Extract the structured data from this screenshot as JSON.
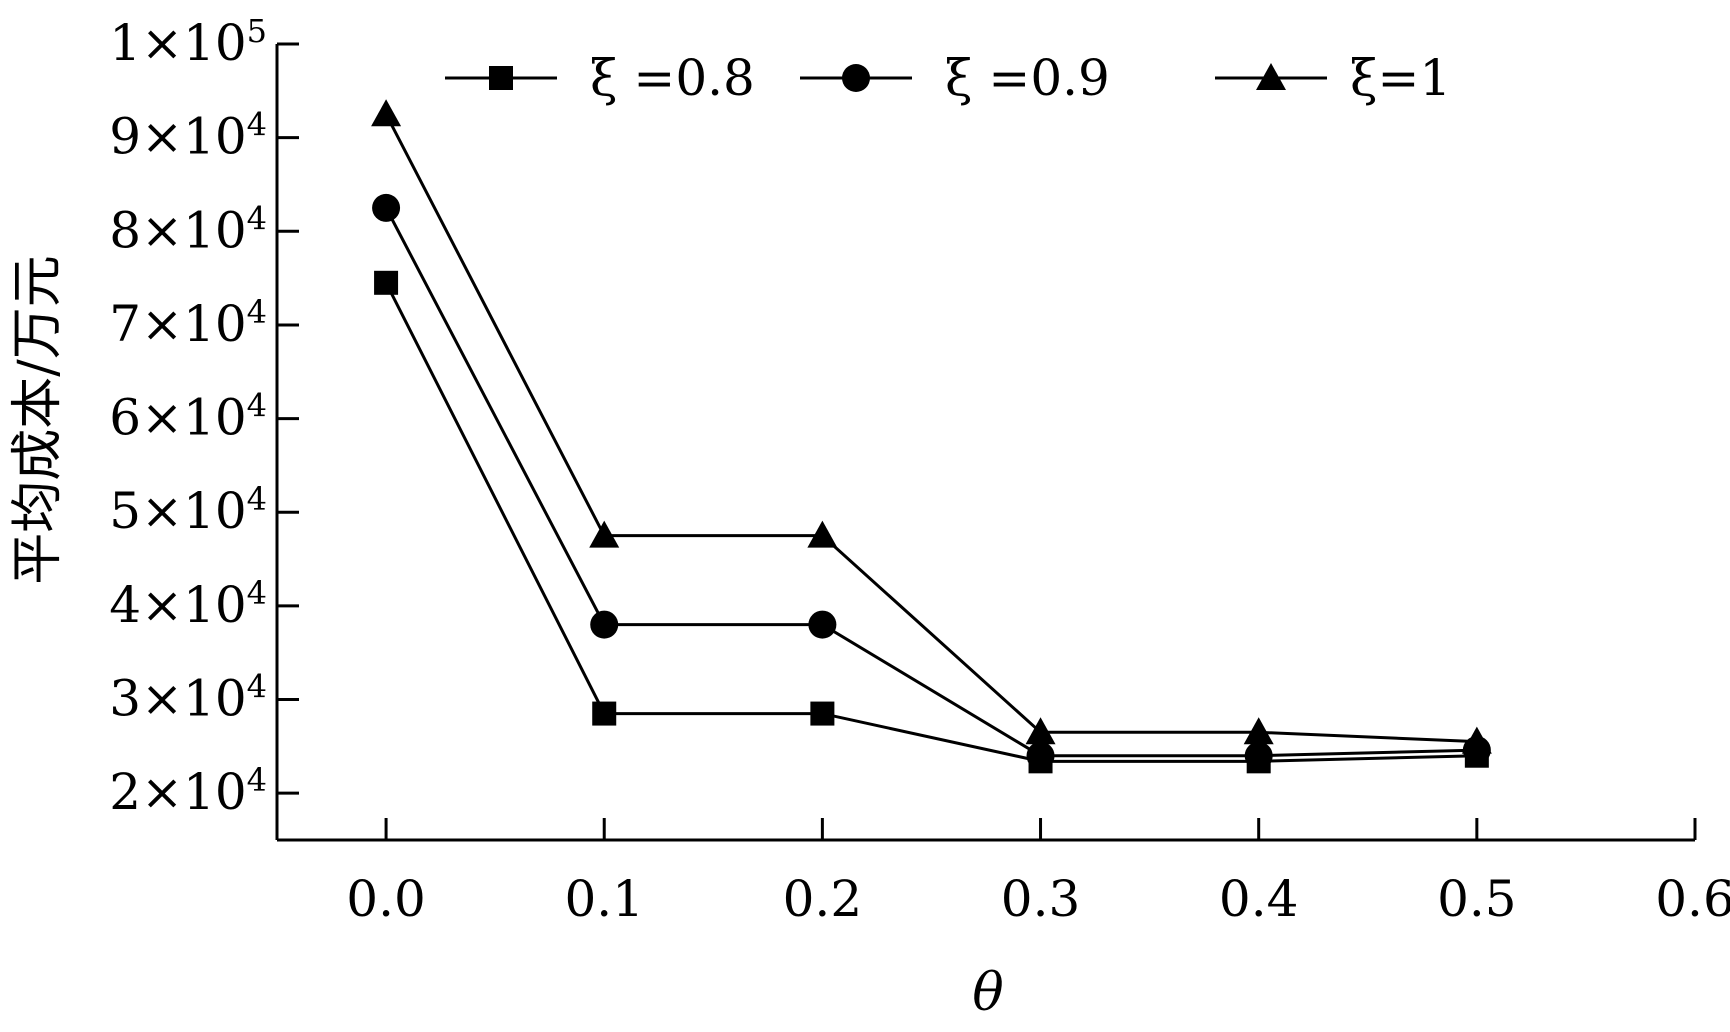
{
  "chart_data": {
    "type": "line",
    "x": [
      0.0,
      0.1,
      0.2,
      0.3,
      0.4,
      0.5
    ],
    "series": [
      {
        "name": "ξ =0.8",
        "marker": "square",
        "values": [
          74500,
          28500,
          28500,
          23400,
          23400,
          24000
        ]
      },
      {
        "name": "ξ =0.9",
        "marker": "circle",
        "values": [
          82500,
          38000,
          38000,
          24000,
          24000,
          24600
        ]
      },
      {
        "name": "ξ=1",
        "marker": "triangle",
        "values": [
          92500,
          47500,
          47500,
          26500,
          26500,
          25500
        ]
      }
    ],
    "xlabel": "θ",
    "ylabel": "平均成本/万元",
    "xlim": [
      -0.05,
      0.6
    ],
    "ylim": [
      15000,
      100000
    ],
    "xticks": [
      {
        "value": 0.0,
        "label": "0.0"
      },
      {
        "value": 0.1,
        "label": "0.1"
      },
      {
        "value": 0.2,
        "label": "0.2"
      },
      {
        "value": 0.3,
        "label": "0.3"
      },
      {
        "value": 0.4,
        "label": "0.4"
      },
      {
        "value": 0.5,
        "label": "0.5"
      },
      {
        "value": 0.6,
        "label": "0.6"
      }
    ],
    "yticks": [
      {
        "value": 20000,
        "mantissa": "2",
        "base": "×10",
        "exp": "4"
      },
      {
        "value": 30000,
        "mantissa": "3",
        "base": "×10",
        "exp": "4"
      },
      {
        "value": 40000,
        "mantissa": "4",
        "base": "×10",
        "exp": "4"
      },
      {
        "value": 50000,
        "mantissa": "5",
        "base": "×10",
        "exp": "4"
      },
      {
        "value": 60000,
        "mantissa": "6",
        "base": "×10",
        "exp": "4"
      },
      {
        "value": 70000,
        "mantissa": "7",
        "base": "×10",
        "exp": "4"
      },
      {
        "value": 80000,
        "mantissa": "8",
        "base": "×10",
        "exp": "4"
      },
      {
        "value": 90000,
        "mantissa": "9",
        "base": "×10",
        "exp": "4"
      },
      {
        "value": 100000,
        "mantissa": "1",
        "base": "×10",
        "exp": "5"
      }
    ],
    "legend_position": "top",
    "grid": false,
    "colors": {
      "line": "#000000",
      "marker": "#000000",
      "axis": "#000000"
    }
  }
}
